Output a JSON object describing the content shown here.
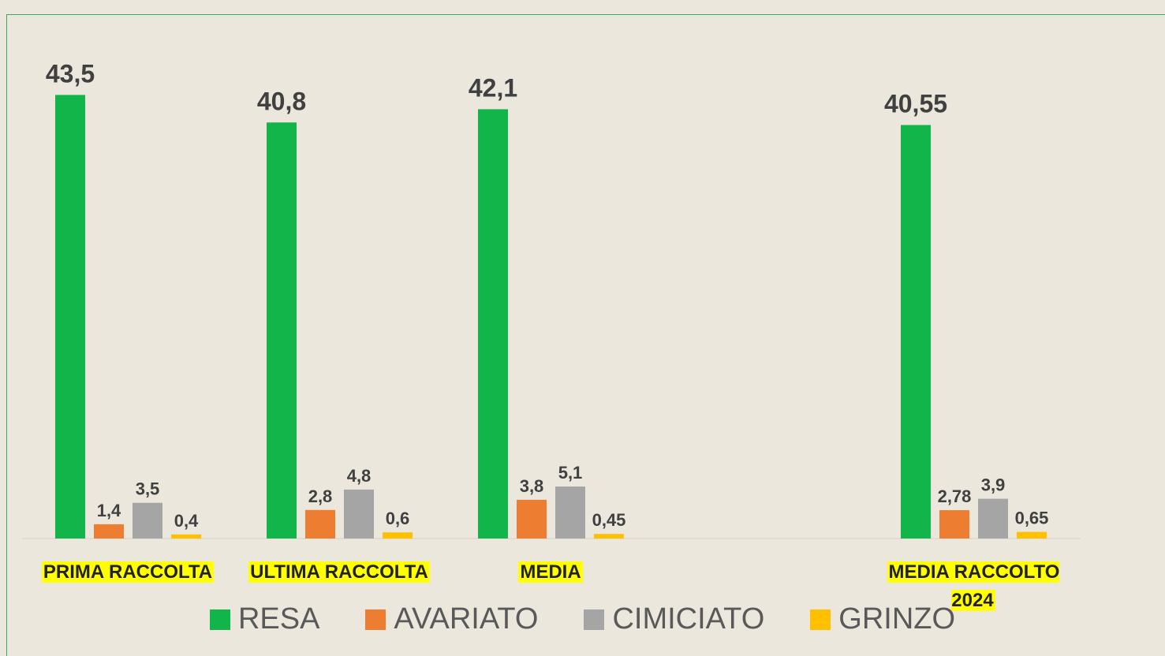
{
  "chart_data": {
    "type": "bar",
    "categories": [
      "PRIMA RACCOLTA",
      "ULTIMA RACCOLTA",
      "MEDIA",
      null,
      "MEDIA RACCOLTO 2024"
    ],
    "series": [
      {
        "name": "RESA",
        "color": "#12b54a",
        "values": [
          43.5,
          40.8,
          42.1,
          null,
          40.55
        ],
        "value_labels": [
          "43,5",
          "40,8",
          "42,1",
          null,
          "40,55"
        ]
      },
      {
        "name": "AVARIATO",
        "color": "#ed7d31",
        "values": [
          1.4,
          2.8,
          3.8,
          null,
          2.78
        ],
        "value_labels": [
          "1,4",
          "2,8",
          "3,8",
          null,
          "2,78"
        ]
      },
      {
        "name": "CIMICIATO",
        "color": "#a5a5a5",
        "values": [
          3.5,
          4.8,
          5.1,
          null,
          3.9
        ],
        "value_labels": [
          "3,5",
          "4,8",
          "5,1",
          null,
          "3,9"
        ]
      },
      {
        "name": "GRINZO",
        "color": "#ffc000",
        "values": [
          0.4,
          0.6,
          0.45,
          null,
          0.65
        ],
        "value_labels": [
          "0,4",
          "0,6",
          "0,45",
          null,
          "0,65"
        ]
      }
    ],
    "ylim": [
      0,
      45
    ]
  }
}
